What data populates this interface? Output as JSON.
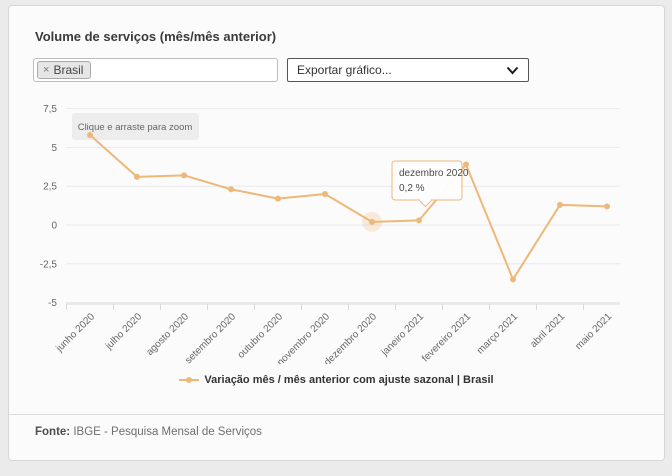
{
  "header": {
    "title": "Volume de serviços (mês/mês anterior)"
  },
  "controls": {
    "territory_select": {
      "tag_label": "Brasil",
      "tag_remove": "×"
    },
    "export_select": {
      "value": "Exportar gráfico..."
    }
  },
  "chart_data": {
    "type": "line",
    "categories": [
      "junho 2020",
      "julho 2020",
      "agosto 2020",
      "setembro 2020",
      "outubro 2020",
      "novembro 2020",
      "dezembro 2020",
      "janeiro 2021",
      "fevereiro 2021",
      "março 2021",
      "abril 2021",
      "maio 2021"
    ],
    "series": [
      {
        "name": "Variação mês / mês anterior com ajuste sazonal | Brasil",
        "color": "#edb878",
        "values": [
          5.8,
          3.1,
          3.2,
          2.3,
          1.7,
          2.0,
          0.2,
          0.3,
          3.9,
          -3.5,
          1.3,
          1.2
        ]
      }
    ],
    "yticks": {
      "values": [
        7.5,
        5,
        2.5,
        0,
        -2.5,
        -5
      ],
      "labels": [
        "7,5",
        "5",
        "2,5",
        "0",
        "-2,5",
        "-5"
      ]
    },
    "ylim": [
      -5,
      7.9
    ],
    "grid": true,
    "legend_position": "bottom",
    "highlight": {
      "index": 6
    },
    "tooltip": {
      "title": "dezembro 2020",
      "value": "0,2 %",
      "category_index": 6
    },
    "zoom_hint": "Clique e arraste para zoom"
  },
  "footer": {
    "source_label": "Fonte:",
    "source_text": "IBGE - Pesquisa Mensal de Serviços"
  },
  "colors": {
    "series": "#edb878",
    "grid": "#e9e9ea",
    "axis": "#d8d8d8",
    "text_muted": "#666666"
  }
}
